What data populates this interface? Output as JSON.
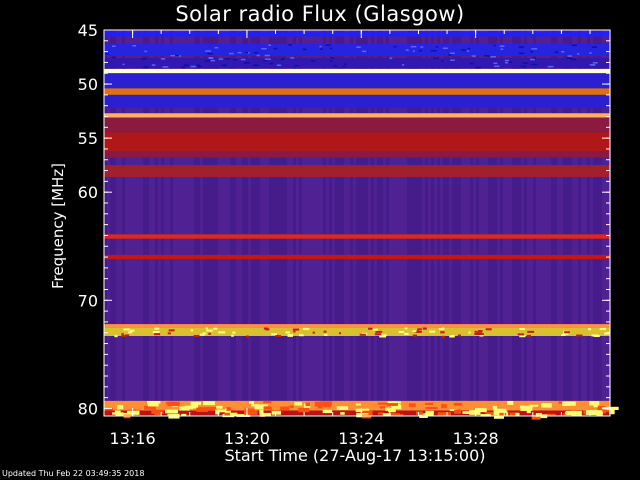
{
  "chart_data": {
    "type": "heatmap",
    "title": "Solar radio Flux (Glasgow)",
    "ylabel": "Frequency [MHz]",
    "xlabel": "Start Time (27-Aug-17 13:15:00)",
    "footer": "Updated Thu Feb 22 03:49:35 2018",
    "y_range": [
      45,
      80
    ],
    "y_inverted": true,
    "y_ticks": [
      "45",
      "50",
      "55",
      "60",
      "70",
      "80"
    ],
    "x_range_minutes": [
      13.25,
      13.5
    ],
    "x_ticks": [
      "13:16",
      "13:20",
      "13:24",
      "13:28"
    ],
    "colormap": [
      "#1a0d8a",
      "#4a1a9a",
      "#8a1030",
      "#c81808",
      "#ff6a10",
      "#ffd030",
      "#ffffa0"
    ],
    "background_level": "#4b1d8f",
    "bands": [
      {
        "f_start": 45.2,
        "f_end": 45.6,
        "level": "#2020ff"
      },
      {
        "f_start": 46.3,
        "f_end": 47.4,
        "level": "#2525e0"
      },
      {
        "f_start": 47.6,
        "f_end": 48.5,
        "level": "#3018b0"
      },
      {
        "f_start": 48.6,
        "f_end": 49.0,
        "level": "#ffffd0"
      },
      {
        "f_start": 49.0,
        "f_end": 50.4,
        "level": "#2a20d0"
      },
      {
        "f_start": 50.4,
        "f_end": 51.0,
        "level": "#e07010"
      },
      {
        "f_start": 51.0,
        "f_end": 52.2,
        "level": "#2a20d0"
      },
      {
        "f_start": 52.7,
        "f_end": 53.1,
        "level": "#ffb060"
      },
      {
        "f_start": 53.1,
        "f_end": 56.8,
        "level": "#8a1a40"
      },
      {
        "f_start": 54.5,
        "f_end": 56.2,
        "level": "#b01818"
      },
      {
        "f_start": 57.5,
        "f_end": 58.6,
        "level": "#a02030"
      },
      {
        "f_start": 63.9,
        "f_end": 64.3,
        "level": "#e02818"
      },
      {
        "f_start": 65.8,
        "f_end": 66.2,
        "level": "#c01818"
      },
      {
        "f_start": 72.2,
        "f_end": 72.5,
        "level": "#ff9040"
      },
      {
        "f_start": 72.5,
        "f_end": 73.3,
        "level": "#d8c030"
      },
      {
        "f_start": 79.3,
        "f_end": 80.2,
        "level": "#ff9030"
      },
      {
        "f_start": 80.2,
        "f_end": 80.6,
        "level": "#c01010"
      }
    ]
  }
}
